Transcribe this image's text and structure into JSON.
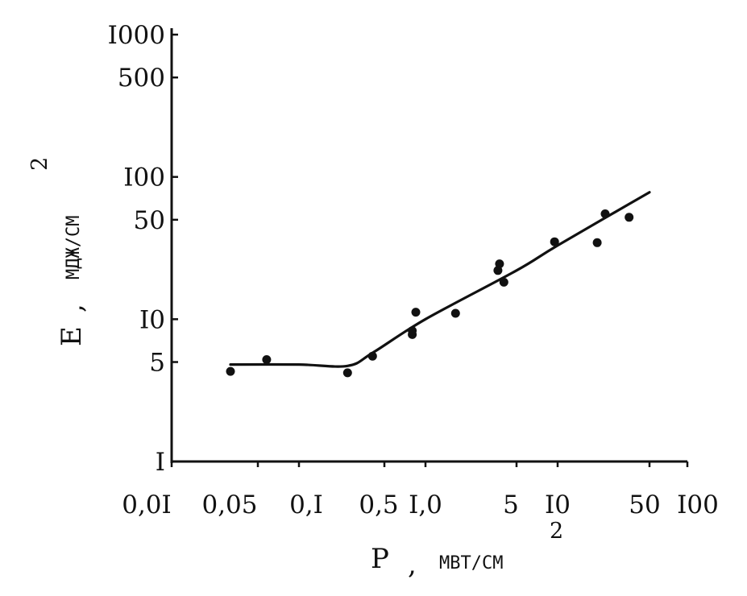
{
  "chart_data": {
    "type": "scatter",
    "title": "",
    "x_axis": {
      "scale": "category-log",
      "tick_labels": [
        "0,0I",
        "0,05",
        "0,I",
        "0,5",
        "I,0",
        "5",
        "I0",
        "50",
        "I00"
      ],
      "tick_values": [
        0.01,
        0.05,
        0.1,
        0.5,
        1.0,
        5,
        10,
        50,
        100
      ],
      "label_symbol": "P",
      "label_sep": ",",
      "label_unit": "МВТ/СМ",
      "label_sup": "2"
    },
    "y_axis": {
      "scale": "log",
      "range": [
        1,
        1000
      ],
      "tick_labels": [
        "I",
        "5",
        "I0",
        "50",
        "I00",
        "500",
        "I000"
      ],
      "tick_values": [
        1,
        5,
        10,
        50,
        100,
        500,
        1000
      ],
      "label_symbol": "E",
      "label_sep": ",",
      "label_unit": "МДЖ/СМ",
      "label_sup": "2"
    },
    "grid": false,
    "points": [
      {
        "x": 0.03,
        "y": 4.3
      },
      {
        "x": 0.058,
        "y": 5.2
      },
      {
        "x": 0.25,
        "y": 4.2
      },
      {
        "x": 0.4,
        "y": 5.5
      },
      {
        "x": 0.8,
        "y": 7.8
      },
      {
        "x": 0.8,
        "y": 8.3
      },
      {
        "x": 0.85,
        "y": 11.2
      },
      {
        "x": 1.7,
        "y": 11.0
      },
      {
        "x": 3.6,
        "y": 22.0
      },
      {
        "x": 3.7,
        "y": 24.5
      },
      {
        "x": 4.0,
        "y": 18.2
      },
      {
        "x": 9.5,
        "y": 35.0
      },
      {
        "x": 20,
        "y": 34.5
      },
      {
        "x": 23,
        "y": 55.0
      },
      {
        "x": 35,
        "y": 52.0
      }
    ],
    "fit_line": [
      {
        "x": 0.03,
        "y": 4.8
      },
      {
        "x": 0.1,
        "y": 4.8
      },
      {
        "x": 0.25,
        "y": 4.7
      },
      {
        "x": 0.4,
        "y": 5.8
      },
      {
        "x": 1.0,
        "y": 10.0
      },
      {
        "x": 5.0,
        "y": 22.0
      },
      {
        "x": 10,
        "y": 33.0
      },
      {
        "x": 50,
        "y": 78.0
      }
    ]
  }
}
